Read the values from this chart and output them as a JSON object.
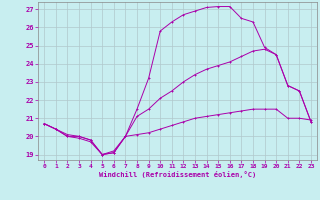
{
  "xlabel": "Windchill (Refroidissement éolien,°C)",
  "ylabel": "",
  "xlim": [
    -0.5,
    23.5
  ],
  "ylim": [
    18.7,
    27.4
  ],
  "yticks": [
    19,
    20,
    21,
    22,
    23,
    24,
    25,
    26,
    27
  ],
  "xticks": [
    0,
    1,
    2,
    3,
    4,
    5,
    6,
    7,
    8,
    9,
    10,
    11,
    12,
    13,
    14,
    15,
    16,
    17,
    18,
    19,
    20,
    21,
    22,
    23
  ],
  "background_color": "#c8eef0",
  "grid_color": "#b0c8cc",
  "line_color": "#aa00aa",
  "line1_x": [
    0,
    1,
    2,
    3,
    4,
    5,
    6,
    7,
    8,
    9,
    10,
    11,
    12,
    13,
    14,
    15,
    16,
    17,
    18,
    19,
    20,
    21,
    22,
    23
  ],
  "line1_y": [
    20.7,
    20.4,
    20.0,
    19.9,
    19.7,
    19.0,
    19.1,
    20.0,
    20.1,
    20.2,
    20.4,
    20.6,
    20.8,
    21.0,
    21.1,
    21.2,
    21.3,
    21.4,
    21.5,
    21.5,
    21.5,
    21.0,
    21.0,
    20.9
  ],
  "line2_x": [
    0,
    1,
    2,
    3,
    4,
    5,
    6,
    7,
    8,
    9,
    10,
    11,
    12,
    13,
    14,
    15,
    16,
    17,
    18,
    19,
    20,
    21,
    22,
    23
  ],
  "line2_y": [
    20.7,
    20.4,
    20.0,
    20.0,
    19.8,
    19.0,
    19.2,
    20.0,
    21.1,
    21.5,
    22.1,
    22.5,
    23.0,
    23.4,
    23.7,
    23.9,
    24.1,
    24.4,
    24.7,
    24.8,
    24.5,
    22.8,
    22.5,
    20.8
  ],
  "line3_x": [
    0,
    1,
    2,
    3,
    4,
    5,
    6,
    7,
    8,
    9,
    10,
    11,
    12,
    13,
    14,
    15,
    16,
    17,
    18,
    19,
    20,
    21,
    22,
    23
  ],
  "line3_y": [
    20.7,
    20.4,
    20.1,
    20.0,
    19.8,
    19.0,
    19.1,
    20.0,
    21.5,
    23.2,
    25.8,
    26.3,
    26.7,
    26.9,
    27.1,
    27.15,
    27.15,
    26.5,
    26.3,
    24.9,
    24.5,
    22.8,
    22.5,
    20.8
  ]
}
